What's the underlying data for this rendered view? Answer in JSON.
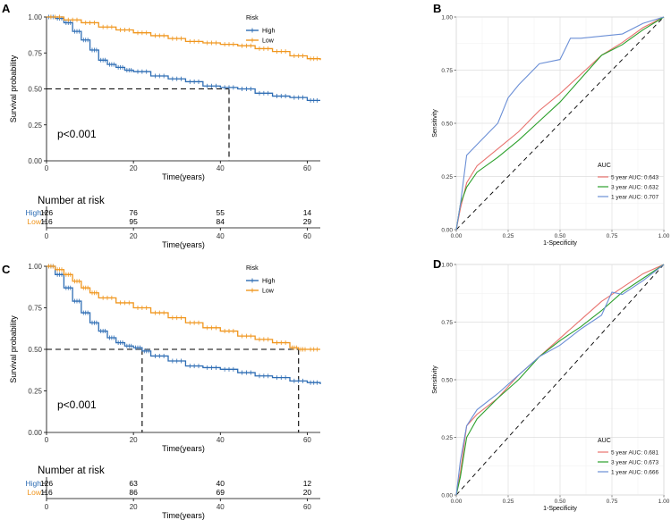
{
  "chart_data": [
    {
      "panel": "A",
      "type": "line",
      "subtype": "kaplan-meier",
      "xlabel": "Time(years)",
      "ylabel": "Survival probability",
      "xlim": [
        0,
        63
      ],
      "ylim": [
        0,
        1
      ],
      "xticks": [
        "0",
        "20",
        "40",
        "60"
      ],
      "yticks": [
        "0.00",
        "0.25",
        "0.50",
        "0.75",
        "1.00"
      ],
      "legend_title": "Risk",
      "legend_position": "top-right",
      "pvalue": "p<0.001",
      "median_lines": [
        {
          "series": "High",
          "x": 42
        }
      ],
      "series": [
        {
          "name": "High",
          "color": "#2e6db4",
          "points": [
            [
              0,
              1
            ],
            [
              2,
              0.99
            ],
            [
              4,
              0.96
            ],
            [
              6,
              0.9
            ],
            [
              8,
              0.84
            ],
            [
              10,
              0.77
            ],
            [
              12,
              0.7
            ],
            [
              14,
              0.67
            ],
            [
              16,
              0.65
            ],
            [
              18,
              0.63
            ],
            [
              20,
              0.62
            ],
            [
              24,
              0.59
            ],
            [
              28,
              0.57
            ],
            [
              32,
              0.55
            ],
            [
              36,
              0.52
            ],
            [
              40,
              0.51
            ],
            [
              44,
              0.5
            ],
            [
              48,
              0.47
            ],
            [
              52,
              0.45
            ],
            [
              56,
              0.44
            ],
            [
              60,
              0.42
            ],
            [
              63,
              0.42
            ]
          ]
        },
        {
          "name": "Low",
          "color": "#f0961e",
          "points": [
            [
              0,
              1
            ],
            [
              4,
              0.98
            ],
            [
              8,
              0.96
            ],
            [
              12,
              0.93
            ],
            [
              16,
              0.91
            ],
            [
              20,
              0.89
            ],
            [
              24,
              0.87
            ],
            [
              28,
              0.85
            ],
            [
              32,
              0.83
            ],
            [
              36,
              0.82
            ],
            [
              40,
              0.81
            ],
            [
              44,
              0.8
            ],
            [
              48,
              0.78
            ],
            [
              52,
              0.76
            ],
            [
              56,
              0.73
            ],
            [
              60,
              0.71
            ],
            [
              63,
              0.7
            ]
          ]
        }
      ],
      "risk_table": {
        "title": "Number at risk",
        "xlabel": "Time(years)",
        "times": [
          "0",
          "20",
          "40",
          "60"
        ],
        "rows": [
          {
            "label": "High",
            "color": "#2e6db4",
            "counts": [
              "126",
              "76",
              "55",
              "14"
            ]
          },
          {
            "label": "Low",
            "color": "#f0961e",
            "counts": [
              "116",
              "95",
              "84",
              "29"
            ]
          }
        ]
      }
    },
    {
      "panel": "B",
      "type": "line",
      "subtype": "roc",
      "xlabel": "1-Specificity",
      "ylabel": "Sensitivity",
      "xlim": [
        0,
        1
      ],
      "ylim": [
        0,
        1
      ],
      "xticks": [
        "0.00",
        "0.25",
        "0.50",
        "0.75",
        "1.00"
      ],
      "yticks": [
        "0.00",
        "0.25",
        "0.50",
        "0.75",
        "1.00"
      ],
      "legend_title": "AUC",
      "legend_position": "bottom-right",
      "series": [
        {
          "name": "5 year AUC: 0.643",
          "color": "#e8736f",
          "points": [
            [
              0,
              0
            ],
            [
              0.02,
              0.1
            ],
            [
              0.05,
              0.22
            ],
            [
              0.1,
              0.3
            ],
            [
              0.2,
              0.38
            ],
            [
              0.3,
              0.46
            ],
            [
              0.4,
              0.56
            ],
            [
              0.5,
              0.64
            ],
            [
              0.6,
              0.73
            ],
            [
              0.7,
              0.82
            ],
            [
              0.8,
              0.88
            ],
            [
              0.9,
              0.95
            ],
            [
              1,
              1
            ]
          ]
        },
        {
          "name": "3 year AUC: 0.632",
          "color": "#2ca02c",
          "points": [
            [
              0,
              0
            ],
            [
              0.02,
              0.12
            ],
            [
              0.05,
              0.2
            ],
            [
              0.1,
              0.27
            ],
            [
              0.2,
              0.34
            ],
            [
              0.3,
              0.42
            ],
            [
              0.4,
              0.51
            ],
            [
              0.5,
              0.6
            ],
            [
              0.6,
              0.71
            ],
            [
              0.7,
              0.82
            ],
            [
              0.8,
              0.87
            ],
            [
              0.9,
              0.94
            ],
            [
              1,
              1
            ]
          ]
        },
        {
          "name": "1 year AUC: 0.707",
          "color": "#6b8fd6",
          "points": [
            [
              0,
              0
            ],
            [
              0.02,
              0.12
            ],
            [
              0.05,
              0.35
            ],
            [
              0.1,
              0.4
            ],
            [
              0.2,
              0.5
            ],
            [
              0.25,
              0.62
            ],
            [
              0.3,
              0.68
            ],
            [
              0.4,
              0.78
            ],
            [
              0.5,
              0.8
            ],
            [
              0.55,
              0.9
            ],
            [
              0.6,
              0.9
            ],
            [
              0.7,
              0.91
            ],
            [
              0.8,
              0.92
            ],
            [
              0.9,
              0.97
            ],
            [
              1,
              1
            ]
          ]
        }
      ]
    },
    {
      "panel": "C",
      "type": "line",
      "subtype": "kaplan-meier",
      "xlabel": "Time(years)",
      "ylabel": "Survival probability",
      "xlim": [
        0,
        63
      ],
      "ylim": [
        0,
        1
      ],
      "xticks": [
        "0",
        "20",
        "40",
        "60"
      ],
      "yticks": [
        "0.00",
        "0.25",
        "0.50",
        "0.75",
        "1.00"
      ],
      "legend_title": "Risk",
      "legend_position": "top-right",
      "pvalue": "p<0.001",
      "median_lines": [
        {
          "series": "High",
          "x": 22
        },
        {
          "series": "Low",
          "x": 58
        }
      ],
      "series": [
        {
          "name": "High",
          "color": "#2e6db4",
          "points": [
            [
              0,
              1
            ],
            [
              2,
              0.95
            ],
            [
              4,
              0.87
            ],
            [
              6,
              0.79
            ],
            [
              8,
              0.72
            ],
            [
              10,
              0.66
            ],
            [
              12,
              0.61
            ],
            [
              14,
              0.57
            ],
            [
              16,
              0.54
            ],
            [
              18,
              0.52
            ],
            [
              20,
              0.51
            ],
            [
              22,
              0.49
            ],
            [
              24,
              0.46
            ],
            [
              28,
              0.43
            ],
            [
              32,
              0.4
            ],
            [
              36,
              0.39
            ],
            [
              40,
              0.38
            ],
            [
              44,
              0.36
            ],
            [
              48,
              0.34
            ],
            [
              52,
              0.33
            ],
            [
              56,
              0.31
            ],
            [
              60,
              0.3
            ],
            [
              63,
              0.29
            ]
          ]
        },
        {
          "name": "Low",
          "color": "#f0961e",
          "points": [
            [
              0,
              1
            ],
            [
              2,
              0.98
            ],
            [
              4,
              0.95
            ],
            [
              6,
              0.91
            ],
            [
              8,
              0.87
            ],
            [
              10,
              0.84
            ],
            [
              12,
              0.81
            ],
            [
              16,
              0.78
            ],
            [
              20,
              0.75
            ],
            [
              24,
              0.72
            ],
            [
              28,
              0.69
            ],
            [
              32,
              0.66
            ],
            [
              36,
              0.63
            ],
            [
              40,
              0.61
            ],
            [
              44,
              0.58
            ],
            [
              48,
              0.56
            ],
            [
              52,
              0.54
            ],
            [
              56,
              0.51
            ],
            [
              58,
              0.5
            ],
            [
              60,
              0.5
            ],
            [
              63,
              0.5
            ]
          ]
        }
      ],
      "risk_table": {
        "title": "Number at risk",
        "xlabel": "Time(years)",
        "times": [
          "0",
          "20",
          "40",
          "60"
        ],
        "rows": [
          {
            "label": "High",
            "color": "#2e6db4",
            "counts": [
              "126",
              "63",
              "40",
              "12"
            ]
          },
          {
            "label": "Low",
            "color": "#f0961e",
            "counts": [
              "116",
              "86",
              "69",
              "20"
            ]
          }
        ]
      }
    },
    {
      "panel": "D",
      "type": "line",
      "subtype": "roc",
      "xlabel": "1-Specificity",
      "ylabel": "Sensitivity",
      "xlim": [
        0,
        1
      ],
      "ylim": [
        0,
        1
      ],
      "xticks": [
        "0.00",
        "0.25",
        "0.50",
        "0.75",
        "1.00"
      ],
      "yticks": [
        "0.00",
        "0.25",
        "0.50",
        "0.75",
        "1.00"
      ],
      "legend_title": "AUC",
      "legend_position": "bottom-right",
      "series": [
        {
          "name": "5 year AUC: 0.681",
          "color": "#e8736f",
          "points": [
            [
              0,
              0
            ],
            [
              0.02,
              0.1
            ],
            [
              0.05,
              0.3
            ],
            [
              0.1,
              0.35
            ],
            [
              0.2,
              0.42
            ],
            [
              0.3,
              0.52
            ],
            [
              0.4,
              0.6
            ],
            [
              0.5,
              0.68
            ],
            [
              0.6,
              0.76
            ],
            [
              0.7,
              0.84
            ],
            [
              0.8,
              0.9
            ],
            [
              0.9,
              0.96
            ],
            [
              1,
              1
            ]
          ]
        },
        {
          "name": "3 year AUC: 0.673",
          "color": "#2ca02c",
          "points": [
            [
              0,
              0
            ],
            [
              0.02,
              0.08
            ],
            [
              0.05,
              0.25
            ],
            [
              0.1,
              0.33
            ],
            [
              0.2,
              0.42
            ],
            [
              0.3,
              0.5
            ],
            [
              0.4,
              0.6
            ],
            [
              0.5,
              0.67
            ],
            [
              0.6,
              0.73
            ],
            [
              0.7,
              0.8
            ],
            [
              0.8,
              0.88
            ],
            [
              0.9,
              0.94
            ],
            [
              1,
              1
            ]
          ]
        },
        {
          "name": "1 year AUC: 0.666",
          "color": "#6b8fd6",
          "points": [
            [
              0,
              0
            ],
            [
              0.02,
              0.15
            ],
            [
              0.05,
              0.3
            ],
            [
              0.1,
              0.37
            ],
            [
              0.2,
              0.44
            ],
            [
              0.3,
              0.52
            ],
            [
              0.4,
              0.6
            ],
            [
              0.5,
              0.65
            ],
            [
              0.6,
              0.72
            ],
            [
              0.7,
              0.78
            ],
            [
              0.75,
              0.88
            ],
            [
              0.8,
              0.87
            ],
            [
              0.9,
              0.93
            ],
            [
              1,
              1
            ]
          ]
        }
      ]
    }
  ]
}
